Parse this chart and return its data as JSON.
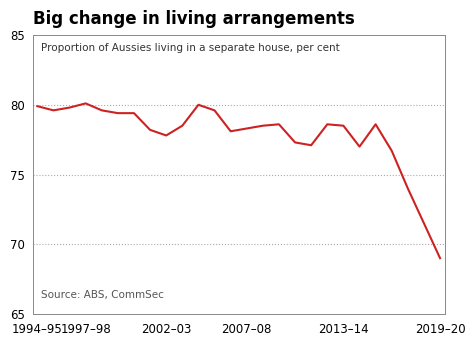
{
  "title": "Big change in living arrangements",
  "subtitle": "Proportion of Aussies living in a separate house, per cent",
  "source": "Source: ABS, CommSec",
  "line_color": "#cc2222",
  "background_color": "#ffffff",
  "plot_bg_color": "#ffffff",
  "ylim": [
    65,
    85
  ],
  "yticks": [
    65,
    70,
    75,
    80,
    85
  ],
  "grid_yticks": [
    70,
    75,
    80
  ],
  "x_labels": [
    "1994–95",
    "1997–98",
    "2002–03",
    "2007–08",
    "2013–14",
    "2019–20"
  ],
  "x_positions": [
    0,
    3,
    8,
    13,
    19,
    25
  ],
  "data": [
    [
      0,
      79.9
    ],
    [
      1,
      79.6
    ],
    [
      2,
      79.8
    ],
    [
      3,
      80.1
    ],
    [
      4,
      79.6
    ],
    [
      5,
      79.4
    ],
    [
      6,
      79.4
    ],
    [
      7,
      78.2
    ],
    [
      8,
      77.8
    ],
    [
      9,
      78.5
    ],
    [
      10,
      80.0
    ],
    [
      11,
      79.6
    ],
    [
      12,
      78.1
    ],
    [
      13,
      78.3
    ],
    [
      14,
      78.5
    ],
    [
      15,
      78.6
    ],
    [
      16,
      77.3
    ],
    [
      17,
      77.1
    ],
    [
      18,
      78.6
    ],
    [
      19,
      78.5
    ],
    [
      20,
      77.0
    ],
    [
      21,
      78.6
    ],
    [
      22,
      76.7
    ],
    [
      23,
      74.0
    ],
    [
      24,
      71.5
    ],
    [
      25,
      69.0
    ]
  ]
}
